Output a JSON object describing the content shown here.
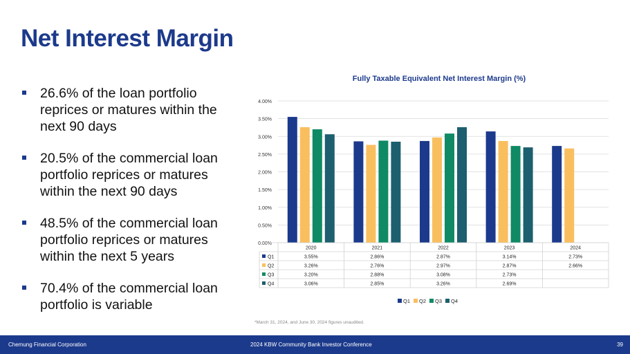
{
  "slide": {
    "title": "Net Interest Margin",
    "bullets": [
      "26.6% of the loan portfolio reprices or matures within the next 90 days",
      "20.5% of the commercial loan portfolio reprices or matures within the next 90 days",
      "48.5% of the commercial loan portfolio reprices or matures within the next 5 years",
      "70.4% of the commercial loan portfolio is variable"
    ],
    "footnote": "*March 31, 2024, and June 30, 2024 figures unaudited.",
    "footer_left": "Chemung Financial Corporation",
    "footer_center": "2024 KBW Community Bank Investor Conference",
    "page_number": "39"
  },
  "chart_data": {
    "type": "bar",
    "title": "Fully Taxable Equivalent Net Interest Margin (%)",
    "categories": [
      "2020",
      "2021",
      "2022",
      "2023",
      "2024"
    ],
    "ylim": [
      0,
      4.0
    ],
    "yticks": [
      "0.00%",
      "0.50%",
      "1.00%",
      "1.50%",
      "2.00%",
      "2.50%",
      "3.00%",
      "3.50%",
      "4.00%"
    ],
    "grid": true,
    "legend_position": "bottom",
    "data_table": true,
    "series": [
      {
        "name": "Q1",
        "color": "#1c3a8c",
        "values": [
          3.55,
          2.86,
          2.87,
          3.14,
          2.73
        ],
        "labels": [
          "3.55%",
          "2.86%",
          "2.87%",
          "3.14%",
          "2.73%"
        ]
      },
      {
        "name": "Q2",
        "color": "#f9bf5f",
        "values": [
          3.26,
          2.76,
          2.97,
          2.87,
          2.66
        ],
        "labels": [
          "3.26%",
          "2.76%",
          "2.97%",
          "2.87%",
          "2.66%"
        ]
      },
      {
        "name": "Q3",
        "color": "#0f8a64",
        "values": [
          3.2,
          2.88,
          3.08,
          2.73,
          null
        ],
        "labels": [
          "3.20%",
          "2.88%",
          "3.08%",
          "2.73%",
          ""
        ]
      },
      {
        "name": "Q4",
        "color": "#1d5f6e",
        "values": [
          3.06,
          2.85,
          3.26,
          2.69,
          null
        ],
        "labels": [
          "3.06%",
          "2.85%",
          "3.26%",
          "2.69%",
          ""
        ]
      }
    ]
  }
}
